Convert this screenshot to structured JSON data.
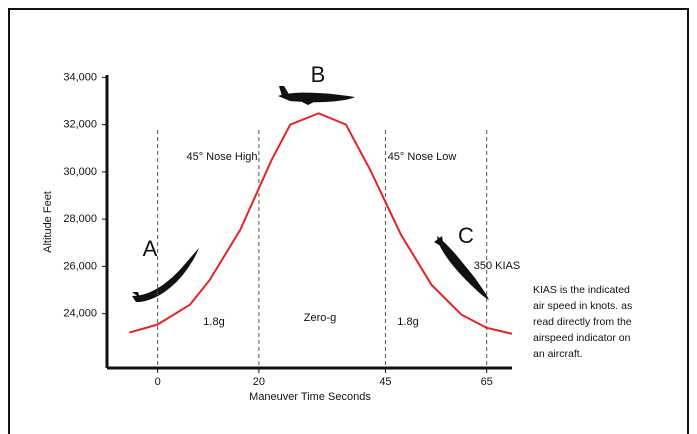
{
  "chart_data": {
    "type": "line",
    "xlabel": "Maneuver Time Seconds",
    "ylabel": "Altitude Feet",
    "x": [
      -5.6,
      0,
      6.4,
      10.3,
      16.3,
      22.5,
      26.2,
      31.8,
      37.2,
      42.0,
      48.1,
      54.1,
      60.0,
      65.0,
      70
    ],
    "series": [
      {
        "color": "#e3232b",
        "values": [
          23200,
          23540,
          24380,
          25430,
          27540,
          30500,
          32000,
          32480,
          32000,
          30080,
          27330,
          25220,
          23960,
          23400,
          23150
        ]
      }
    ],
    "xlim": [
      -10,
      70
    ],
    "ylim": [
      21700,
      34100
    ],
    "xticks": [
      0,
      20,
      45,
      65
    ],
    "yticks": [
      {
        "value": 24000,
        "label": "24,000"
      },
      {
        "value": 26000,
        "label": "26,000"
      },
      {
        "value": 28000,
        "label": "28,000"
      },
      {
        "value": 30000,
        "label": "30,000"
      },
      {
        "value": 32000,
        "label": "32,000"
      },
      {
        "value": 34000,
        "label": "34,000"
      }
    ],
    "tick_guides": true,
    "annotations": [
      "A",
      "B",
      "C",
      "45° Nose High",
      "45° Nose Low",
      "1.8g",
      "Zero-g",
      "1.8g",
      "350 KIAS"
    ],
    "note": [
      "KIAS is the indicated",
      "air speed in knots. as",
      "read directly from the",
      "airspeed indicator on",
      "an aircraft."
    ]
  }
}
